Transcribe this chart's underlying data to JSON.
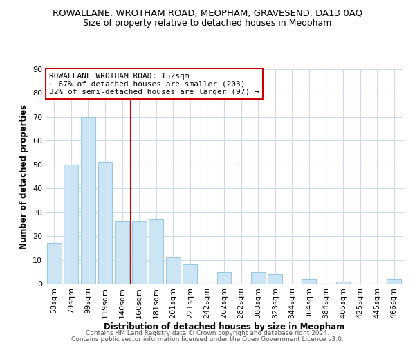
{
  "title": "ROWALLANE, WROTHAM ROAD, MEOPHAM, GRAVESEND, DA13 0AQ",
  "subtitle": "Size of property relative to detached houses in Meopham",
  "xlabel": "Distribution of detached houses by size in Meopham",
  "ylabel": "Number of detached properties",
  "bar_labels": [
    "58sqm",
    "79sqm",
    "99sqm",
    "119sqm",
    "140sqm",
    "160sqm",
    "181sqm",
    "201sqm",
    "221sqm",
    "242sqm",
    "262sqm",
    "282sqm",
    "303sqm",
    "323sqm",
    "344sqm",
    "364sqm",
    "384sqm",
    "405sqm",
    "425sqm",
    "445sqm",
    "466sqm"
  ],
  "bar_values": [
    17,
    50,
    70,
    51,
    26,
    26,
    27,
    11,
    8,
    0,
    5,
    0,
    5,
    4,
    0,
    2,
    0,
    1,
    0,
    0,
    2
  ],
  "bar_color": "#cce5f5",
  "bar_edge_color": "#9ac8e0",
  "marker_label": "ROWALLANE WROTHAM ROAD: 152sqm",
  "annotation_line1": "← 67% of detached houses are smaller (203)",
  "annotation_line2": "32% of semi-detached houses are larger (97) →",
  "ylim": [
    0,
    90
  ],
  "yticks": [
    0,
    10,
    20,
    30,
    40,
    50,
    60,
    70,
    80,
    90
  ],
  "footer1": "Contains HM Land Registry data © Crown copyright and database right 2024.",
  "footer2": "Contains public sector information licensed under the Open Government Licence v3.0.",
  "marker_line_color": "#cc0000",
  "annotation_box_edge": "#cc0000",
  "background_color": "#ffffff",
  "grid_color": "#cdd8e8",
  "title_fontsize": 9.5,
  "subtitle_fontsize": 9,
  "axis_label_fontsize": 8.5,
  "tick_fontsize": 8,
  "annotation_fontsize": 8,
  "footer_fontsize": 6.5
}
